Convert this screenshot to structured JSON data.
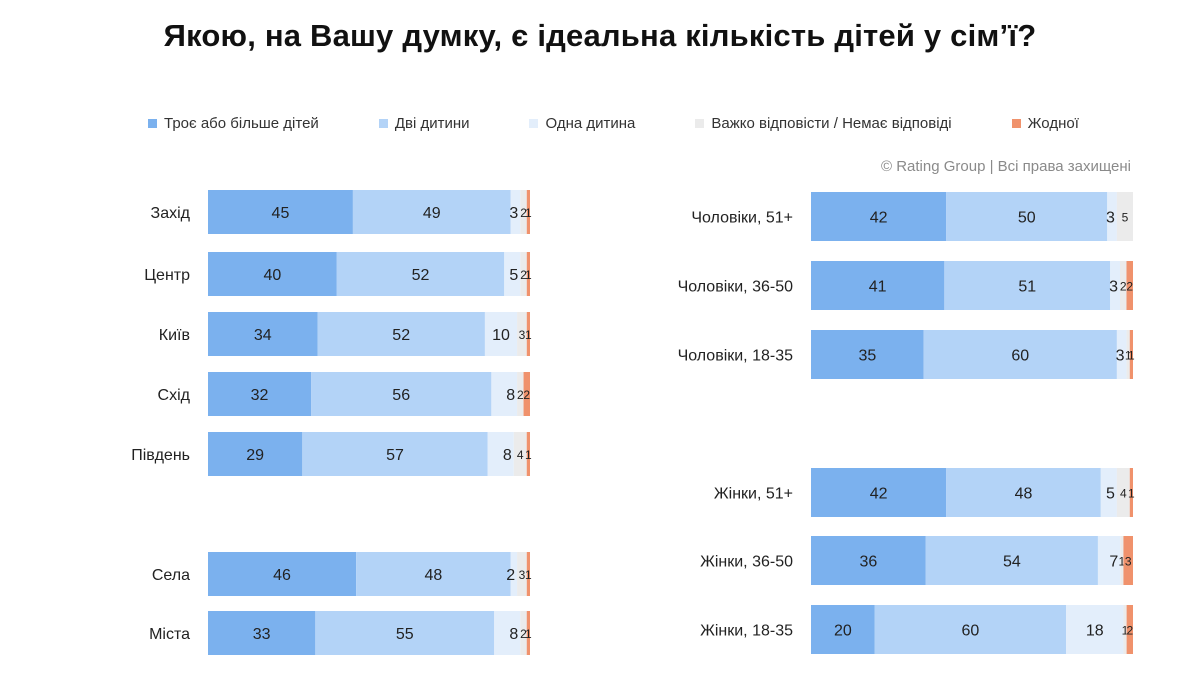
{
  "chart_data": {
    "type": "bar",
    "orientation": "horizontal",
    "stacked": true,
    "percent": true,
    "title": "Якою, на Вашу думку, є ідеальна кількість дітей у сім’ї?",
    "source": "© Rating Group | Всі права захищені",
    "legend_position": "top",
    "series": [
      {
        "name": "Троє або більше дітей",
        "color": "#7bb1ee"
      },
      {
        "name": "Дві дитини",
        "color": "#b3d3f7"
      },
      {
        "name": "Одна дитина",
        "color": "#e3eefb"
      },
      {
        "name": "Важко відповісти / Немає відповіді",
        "color": "#ebebeb"
      },
      {
        "name": "Жодної",
        "color": "#f0926c"
      }
    ],
    "panels": [
      {
        "name": "regions",
        "groups": [
          {
            "rows": [
              {
                "label": "Захід",
                "values": [
                  45,
                  49,
                  3,
                  2,
                  1
                ]
              },
              {
                "label": "Центр",
                "values": [
                  40,
                  52,
                  5,
                  2,
                  1
                ]
              },
              {
                "label": "Київ",
                "values": [
                  34,
                  52,
                  10,
                  3,
                  1
                ]
              },
              {
                "label": "Схід",
                "values": [
                  32,
                  56,
                  8,
                  2,
                  2
                ]
              },
              {
                "label": "Південь",
                "values": [
                  29,
                  57,
                  8,
                  4,
                  1
                ]
              }
            ]
          },
          {
            "rows": [
              {
                "label": "Села",
                "values": [
                  46,
                  48,
                  2,
                  3,
                  1
                ]
              },
              {
                "label": "Міста",
                "values": [
                  33,
                  55,
                  8,
                  2,
                  1
                ]
              }
            ]
          }
        ]
      },
      {
        "name": "gender-age",
        "groups": [
          {
            "rows": [
              {
                "label": "Чоловіки, 51+",
                "values": [
                  42,
                  50,
                  3,
                  5,
                  0
                ]
              },
              {
                "label": "Чоловіки, 36-50",
                "values": [
                  41,
                  51,
                  3,
                  2,
                  2
                ]
              },
              {
                "label": "Чоловіки, 18-35",
                "values": [
                  35,
                  60,
                  3,
                  1,
                  1
                ]
              }
            ]
          },
          {
            "rows": [
              {
                "label": "Жінки, 51+",
                "values": [
                  42,
                  48,
                  5,
                  4,
                  1
                ]
              },
              {
                "label": "Жінки, 36-50",
                "values": [
                  36,
                  54,
                  7,
                  1,
                  3
                ]
              },
              {
                "label": "Жінки, 18-35",
                "values": [
                  20,
                  60,
                  18,
                  1,
                  2
                ]
              }
            ]
          }
        ]
      }
    ]
  }
}
